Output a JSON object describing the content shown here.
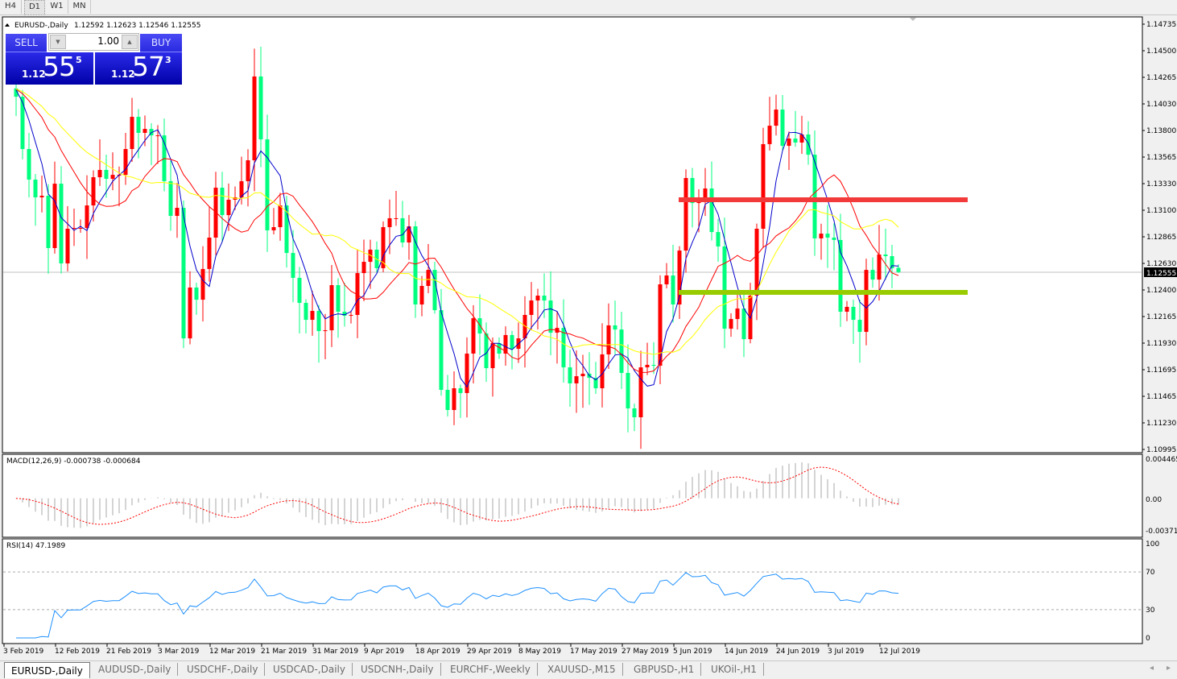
{
  "toolbar": {
    "timeframes": [
      "H4",
      "D1",
      "W1",
      "MN"
    ],
    "active": "D1"
  },
  "chart": {
    "header": {
      "symbol": "EURUSD-,Daily",
      "ohlc": "1.12592 1.12623 1.12546 1.12555"
    }
  },
  "trade_panel": {
    "sell_label": "SELL",
    "buy_label": "BUY",
    "lot": "1.00",
    "sell": {
      "prefix": "1.12",
      "main": "55",
      "sup": "5"
    },
    "buy": {
      "prefix": "1.12",
      "main": "57",
      "sup": "3"
    }
  },
  "price_axis": {
    "labels": [
      "1.14735",
      "1.14500",
      "1.14265",
      "1.14030",
      "1.13800",
      "1.13565",
      "1.13330",
      "1.13100",
      "1.12865",
      "1.12630",
      "1.12400",
      "1.12165",
      "1.11930",
      "1.11695",
      "1.11465",
      "1.11230",
      "1.10995"
    ],
    "current_price": "1.12555"
  },
  "macd": {
    "label": "MACD(12,26,9) -0.000738 -0.000684",
    "axis": [
      "0.004465",
      "0.00",
      "-0.003715"
    ]
  },
  "rsi": {
    "label": "RSI(14) 47.1989",
    "axis": [
      "100",
      "70",
      "30",
      "0"
    ]
  },
  "date_axis": [
    "3 Feb 2019",
    "12 Feb 2019",
    "21 Feb 2019",
    "3 Mar 2019",
    "12 Mar 2019",
    "21 Mar 2019",
    "31 Mar 2019",
    "9 Apr 2019",
    "18 Apr 2019",
    "29 Apr 2019",
    "8 May 2019",
    "17 May 2019",
    "27 May 2019",
    "5 Jun 2019",
    "14 Jun 2019",
    "24 Jun 2019",
    "3 Jul 2019",
    "12 Jul 2019"
  ],
  "tabs": [
    "EURUSD-,Daily",
    "AUDUSD-,Daily",
    "USDCHF-,Daily",
    "USDCAD-,Daily",
    "USDCNH-,Daily",
    "EURCHF-,Weekly",
    "XAUUSD-,M15",
    "GBPUSD-,H1",
    "UKOil-,H1"
  ],
  "tab_nav": {
    "prev": "◂",
    "next": "▸"
  },
  "chart_data": {
    "type": "candlestick",
    "symbol": "EURUSD",
    "timeframe": "Daily",
    "ylim": [
      1.10995,
      1.14735
    ],
    "first_open": 1.1417,
    "close": [
      1.14097,
      1.13637,
      1.13368,
      1.13212,
      1.13226,
      1.12766,
      1.13332,
      1.12631,
      1.12936,
      1.12943,
      1.12943,
      1.13141,
      1.13389,
      1.13453,
      1.13375,
      1.1341,
      1.1341,
      1.13637,
      1.1392,
      1.13779,
      1.13814,
      1.13757,
      1.13757,
      1.13354,
      1.13049,
      1.1312,
      1.11972,
      1.12419,
      1.12312,
      1.12582,
      1.12858,
      1.13297,
      1.13056,
      1.13191,
      1.13212,
      1.13354,
      1.13538,
      1.14275,
      1.13722,
      1.12922,
      1.1295,
      1.13141,
      1.12723,
      1.12504,
      1.12284,
      1.12135,
      1.12213,
      1.12036,
      1.12043,
      1.1244,
      1.12206,
      1.12171,
      1.12178,
      1.12546,
      1.12645,
      1.12752,
      1.12589,
      1.1295,
      1.13028,
      1.13028,
      1.12815,
      1.12957,
      1.1227,
      1.12433,
      1.12574,
      1.1222,
      1.11519,
      1.11342,
      1.11533,
      1.11491,
      1.11838,
      1.12149,
      1.12015,
      1.1171,
      1.1193,
      1.11838,
      1.12001,
      1.1188,
      1.11972,
      1.12178,
      1.12305,
      1.12348,
      1.12305,
      1.12022,
      1.12064,
      1.11717,
      1.11576,
      1.11639,
      1.11661,
      1.11625,
      1.11533,
      1.11831,
      1.12086,
      1.1205,
      1.11668,
      1.11356,
      1.11278,
      1.11717,
      1.11739,
      1.11731,
      1.12447,
      1.12525,
      1.1227,
      1.12744,
      1.13382,
      1.13162,
      1.13177,
      1.1329,
      1.12907,
      1.1278,
      1.12057,
      1.12142,
      1.12234,
      1.11965,
      1.12348,
      1.12936,
      1.1368,
      1.13842,
      1.13984,
      1.13665,
      1.13729,
      1.13694,
      1.13765,
      1.13587,
      1.12851,
      1.12893,
      1.12858,
      1.12837,
      1.12206,
      1.12249,
      1.12135,
      1.12029,
      1.12574,
      1.12489,
      1.12709,
      1.12695,
      1.12589,
      1.12555
    ],
    "last_bar": {
      "open": 1.12592,
      "high": 1.12623,
      "low": 1.12546,
      "close": 1.12555
    },
    "horizontal_lines": [
      {
        "price": 1.13191,
        "color": "#f33a3a"
      },
      {
        "price": 1.12376,
        "color": "#99cc00"
      }
    ],
    "colors": {
      "bull": "#ff0000",
      "bear": "#00ff7f",
      "ma_fast": "#0000cc",
      "ma_mid": "#ff0000",
      "ma_slow": "#ffff00",
      "rsi": "#1e90ff",
      "macd_hist": "#a8a8a8",
      "macd_signal": "#ff0000"
    },
    "rsi_levels": [
      70,
      30
    ],
    "macd_range": [
      -0.003715,
      0.004465
    ],
    "rsi_range": [
      0,
      100
    ]
  }
}
